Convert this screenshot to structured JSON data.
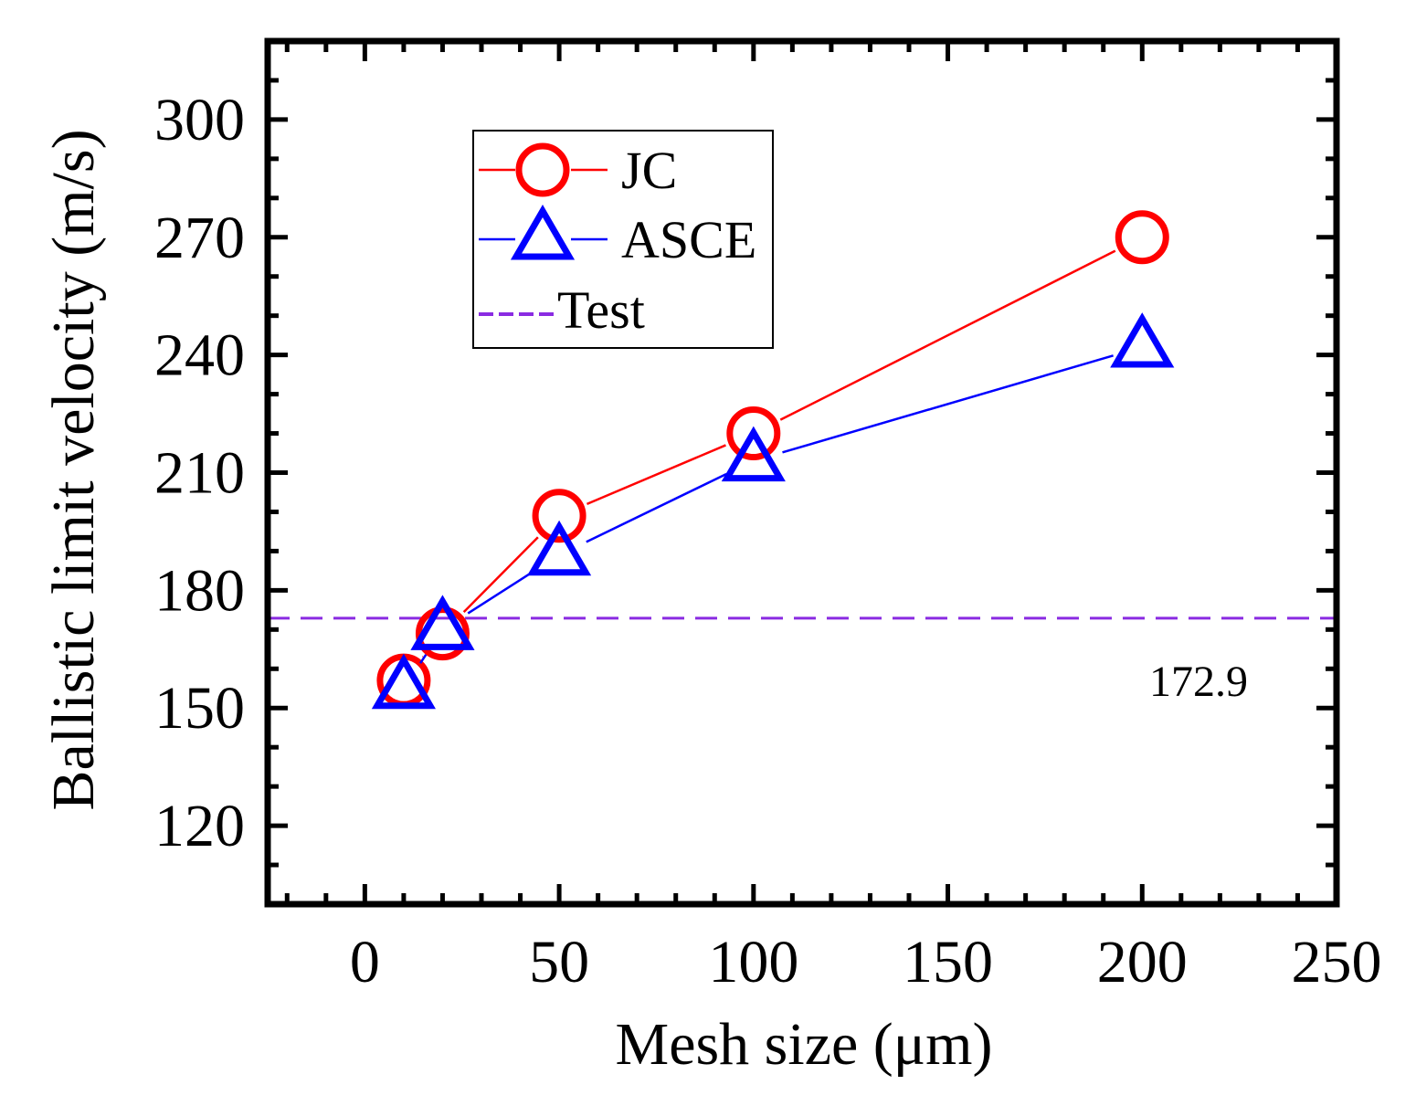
{
  "chart_data": {
    "type": "line",
    "title": "",
    "xlabel": "Mesh size (μm)",
    "ylabel": "Ballistic limit velocity (m/s)",
    "xlim": [
      -25,
      250
    ],
    "ylim": [
      100,
      320
    ],
    "xticks": [
      0,
      50,
      100,
      150,
      200,
      250
    ],
    "yticks": [
      120,
      150,
      180,
      210,
      240,
      270,
      300
    ],
    "x_minor_step": 10,
    "y_minor_step": 10,
    "grid": false,
    "legend_position": "top-left",
    "series": [
      {
        "name": "JC",
        "color": "#ff0000",
        "marker": "circle",
        "x": [
          10,
          20,
          50,
          100,
          200
        ],
        "values": [
          157,
          169,
          199,
          220,
          270
        ]
      },
      {
        "name": "ASCE",
        "color": "#0000ff",
        "marker": "triangle",
        "x": [
          10,
          20,
          50,
          100,
          200
        ],
        "values": [
          155,
          170,
          189,
          213,
          242
        ]
      }
    ],
    "reference_lines": [
      {
        "name": "Test",
        "y": 172.9,
        "color": "#8a2be2",
        "style": "dashed",
        "annotation": "172.9"
      }
    ]
  }
}
